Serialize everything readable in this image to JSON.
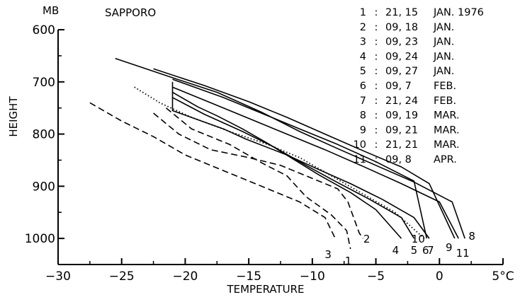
{
  "chart_data": {
    "type": "line",
    "title": "SAPPORO",
    "xlabel": "TEMPERATURE",
    "ylabel": "HEIGHT",
    "x_unit": "5°C",
    "y_unit": "MB",
    "xlim": [
      -30,
      5
    ],
    "ylim": [
      600,
      1050
    ],
    "y_inverted": true,
    "xticks": [
      -30,
      -25,
      -20,
      -15,
      -10,
      -5,
      0,
      5
    ],
    "xtick_labels": [
      "−30",
      "−25",
      "−20",
      "−15",
      "−10",
      "−5",
      "0",
      "5°C"
    ],
    "yticks": [
      600,
      700,
      800,
      900,
      1000
    ],
    "ytick_labels": [
      "600",
      "700",
      "800",
      "900",
      "1000"
    ],
    "legend": [
      {
        "num": "1",
        "date": "21, 15",
        "month": "JAN. 1976"
      },
      {
        "num": "2",
        "date": "09, 18",
        "month": "JAN."
      },
      {
        "num": "3",
        "date": "09, 23",
        "month": "JAN."
      },
      {
        "num": "4",
        "date": "09, 24",
        "month": "JAN."
      },
      {
        "num": "5",
        "date": "09, 27",
        "month": "JAN."
      },
      {
        "num": "6",
        "date": "09,  7",
        "month": "FEB."
      },
      {
        "num": "7",
        "date": "21, 24",
        "month": "FEB."
      },
      {
        "num": "8",
        "date": "09, 19",
        "month": "MAR."
      },
      {
        "num": "9",
        "date": "09, 21",
        "month": "MAR."
      },
      {
        "num": "10",
        "date": "21, 21",
        "month": "MAR."
      },
      {
        "num": "11",
        "date": "09,  8",
        "month": "APR."
      }
    ],
    "series": [
      {
        "name": "1",
        "style": "dashed",
        "label": "1",
        "points": [
          [
            -21.5,
            750
          ],
          [
            -19.5,
            790
          ],
          [
            -16.5,
            820
          ],
          [
            -14,
            855
          ],
          [
            -12,
            880
          ],
          [
            -10.5,
            920
          ],
          [
            -8.5,
            955
          ],
          [
            -7.3,
            985
          ],
          [
            -7,
            1020
          ]
        ]
      },
      {
        "name": "2",
        "style": "dashed",
        "label": "2",
        "points": [
          [
            -22.5,
            760
          ],
          [
            -20.5,
            800
          ],
          [
            -18,
            830
          ],
          [
            -15,
            845
          ],
          [
            -12.5,
            860
          ],
          [
            -10,
            885
          ],
          [
            -8,
            905
          ],
          [
            -7.2,
            930
          ],
          [
            -6.3,
            990
          ],
          [
            -6,
            1000
          ]
        ]
      },
      {
        "name": "3",
        "style": "dashed",
        "label": "3",
        "points": [
          [
            -27.5,
            740
          ],
          [
            -25,
            775
          ],
          [
            -22.5,
            805
          ],
          [
            -20,
            840
          ],
          [
            -17,
            870
          ],
          [
            -14,
            900
          ],
          [
            -11,
            930
          ],
          [
            -9,
            960
          ],
          [
            -8.4,
            990
          ],
          [
            -8.2,
            1000
          ]
        ]
      },
      {
        "name": "4",
        "style": "solid",
        "label": "4",
        "points": [
          [
            -21,
            720
          ],
          [
            -19,
            748
          ],
          [
            -17.5,
            765
          ],
          [
            -15.5,
            790
          ],
          [
            -13.5,
            818
          ],
          [
            -11.5,
            848
          ],
          [
            -9.5,
            878
          ],
          [
            -7,
            912
          ],
          [
            -5,
            945
          ],
          [
            -3,
            1000
          ]
        ]
      },
      {
        "name": "5",
        "style": "solid",
        "label": "5",
        "points": [
          [
            -21,
            730
          ],
          [
            -18.5,
            762
          ],
          [
            -15.5,
            795
          ],
          [
            -13,
            825
          ],
          [
            -10.5,
            860
          ],
          [
            -8,
            893
          ],
          [
            -5.5,
            925
          ],
          [
            -3,
            960
          ],
          [
            -2,
            1000
          ]
        ]
      },
      {
        "name": "6",
        "style": "dotted",
        "label": "6",
        "points": [
          [
            -24,
            710
          ],
          [
            -22,
            740
          ],
          [
            -19.5,
            768
          ],
          [
            -16.5,
            795
          ],
          [
            -13.5,
            820
          ],
          [
            -11,
            845
          ],
          [
            -8.5,
            880
          ],
          [
            -6,
            915
          ],
          [
            -3.5,
            950
          ],
          [
            -1.2,
            1000
          ]
        ]
      },
      {
        "name": "7",
        "style": "solid",
        "label": "7",
        "points": [
          [
            -21,
            700
          ],
          [
            -21,
            755
          ],
          [
            -17,
            790
          ],
          [
            -15.2,
            810
          ],
          [
            -12,
            840
          ],
          [
            -9.5,
            868
          ],
          [
            -7,
            895
          ],
          [
            -4.5,
            925
          ],
          [
            -2,
            960
          ],
          [
            -0.8,
            1000
          ]
        ]
      },
      {
        "name": "8",
        "style": "solid",
        "label": "8",
        "points": [
          [
            -25.5,
            655
          ],
          [
            -21,
            692
          ],
          [
            -17.5,
            720
          ],
          [
            -14,
            758
          ],
          [
            -11,
            795
          ],
          [
            -8,
            828
          ],
          [
            -5,
            860
          ],
          [
            -2,
            892
          ],
          [
            1,
            930
          ],
          [
            2,
            1000
          ]
        ]
      },
      {
        "name": "9",
        "style": "solid",
        "label": "9",
        "points": [
          [
            -22.5,
            675
          ],
          [
            -18.5,
            707
          ],
          [
            -15,
            738
          ],
          [
            -12,
            768
          ],
          [
            -9,
            800
          ],
          [
            -6,
            832
          ],
          [
            -3,
            863
          ],
          [
            -0.8,
            895
          ],
          [
            1.2,
            1000
          ]
        ]
      },
      {
        "name": "10",
        "style": "solid",
        "label": "10",
        "points": [
          [
            -21,
            695
          ],
          [
            -17,
            730
          ],
          [
            -13.5,
            765
          ],
          [
            -11,
            790
          ],
          [
            -8,
            820
          ],
          [
            -5,
            853
          ],
          [
            -2,
            890
          ],
          [
            -1,
            1000
          ]
        ]
      },
      {
        "name": "11",
        "style": "solid",
        "label": "11",
        "points": [
          [
            -21,
            710
          ],
          [
            -18,
            740
          ],
          [
            -15,
            770
          ],
          [
            -12,
            800
          ],
          [
            -9,
            830
          ],
          [
            -6,
            862
          ],
          [
            -3,
            895
          ],
          [
            0,
            930
          ],
          [
            1.5,
            1000
          ]
        ]
      }
    ]
  }
}
